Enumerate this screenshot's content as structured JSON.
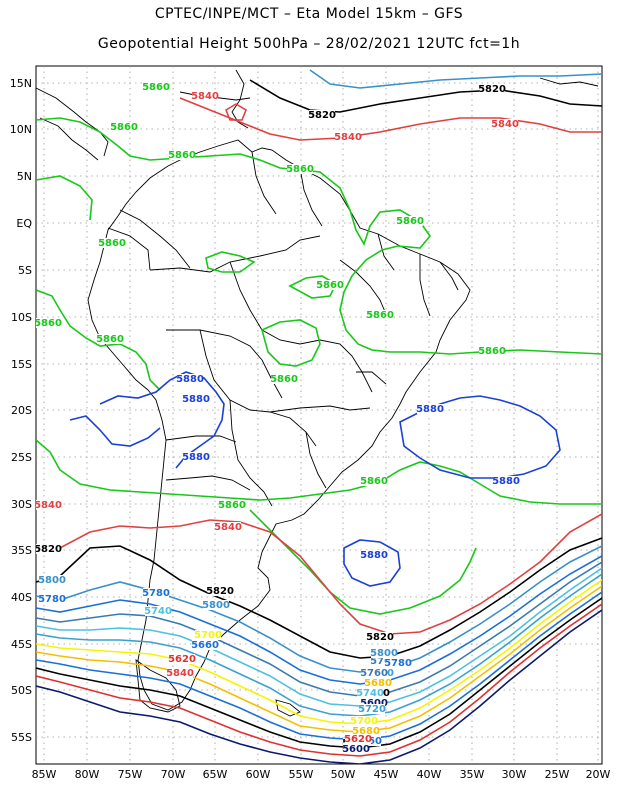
{
  "header": {
    "line1": "CPTEC/INPE/MCT –  Eta Model 15km – GFS",
    "line2": "Geopotential Height 500hPa – 28/02/2021 12UTC fct=1h"
  },
  "axes": {
    "lat_labels": [
      "15N",
      "10N",
      "5N",
      "EQ",
      "5S",
      "10S",
      "15S",
      "20S",
      "25S",
      "30S",
      "35S",
      "40S",
      "45S",
      "50S",
      "55S"
    ],
    "lon_labels": [
      "85W",
      "80W",
      "75W",
      "70W",
      "65W",
      "60W",
      "55W",
      "50W",
      "45W",
      "40W",
      "35W",
      "30W",
      "25W",
      "20W"
    ]
  },
  "contours": {
    "colors": {
      "c5600": "#0a1a6e",
      "c5620": "#e03030",
      "c5640": "#000000",
      "c5660": "#1a6fd8",
      "c5680": "#f2c000",
      "c5700": "#f5f500",
      "c5720": "#3aa0d0",
      "c5740": "#4ec0e0",
      "c5760": "#3a7ab0",
      "c5780": "#1a6fd8",
      "c5800": "#3a90c8",
      "c5820": "#000000",
      "c5840": "#e04040",
      "c5860": "#18c818",
      "c5880": "#1a40d8"
    },
    "labels": [
      {
        "text": "5820",
        "color": "#000000"
      },
      {
        "text": "5840",
        "color": "#e04040"
      },
      {
        "text": "5840",
        "color": "#e04040"
      },
      {
        "text": "5820",
        "color": "#000000"
      },
      {
        "text": "5860",
        "color": "#18c818"
      },
      {
        "text": "5840",
        "color": "#e04040"
      },
      {
        "text": "5860",
        "color": "#18c818"
      },
      {
        "text": "5860",
        "color": "#18c818"
      },
      {
        "text": "5860",
        "color": "#18c818"
      },
      {
        "text": "5860",
        "color": "#18c818"
      },
      {
        "text": "5860",
        "color": "#18c818"
      },
      {
        "text": "5860",
        "color": "#18c818"
      },
      {
        "text": "5860",
        "color": "#18c818"
      },
      {
        "text": "5860",
        "color": "#18c818"
      },
      {
        "text": "5860",
        "color": "#18c818"
      },
      {
        "text": "5860",
        "color": "#18c818"
      },
      {
        "text": "5860",
        "color": "#18c818"
      },
      {
        "text": "5880",
        "color": "#1a40d8"
      },
      {
        "text": "5880",
        "color": "#1a40d8"
      },
      {
        "text": "5880",
        "color": "#1a40d8"
      },
      {
        "text": "5880",
        "color": "#1a40d8"
      },
      {
        "text": "5880",
        "color": "#1a40d8"
      },
      {
        "text": "5880",
        "color": "#1a40d8"
      },
      {
        "text": "5860",
        "color": "#18c818"
      },
      {
        "text": "5860",
        "color": "#18c818"
      },
      {
        "text": "5840",
        "color": "#e04040"
      },
      {
        "text": "5840",
        "color": "#e04040"
      },
      {
        "text": "5820",
        "color": "#000000"
      },
      {
        "text": "5820",
        "color": "#000000"
      },
      {
        "text": "5800",
        "color": "#3a90c8"
      },
      {
        "text": "5800",
        "color": "#3a90c8"
      },
      {
        "text": "5780",
        "color": "#1a6fd8"
      },
      {
        "text": "5780",
        "color": "#1a6fd8"
      },
      {
        "text": "5760",
        "color": "#3a7ab0"
      },
      {
        "text": "5740",
        "color": "#4ec0e0"
      },
      {
        "text": "5720",
        "color": "#3aa0d0"
      },
      {
        "text": "5700",
        "color": "#f5f500"
      },
      {
        "text": "5680",
        "color": "#f2c000"
      },
      {
        "text": "5660",
        "color": "#1a6fd8"
      },
      {
        "text": "5640",
        "color": "#000000"
      },
      {
        "text": "5620",
        "color": "#e03030"
      },
      {
        "text": "5600",
        "color": "#0a1a6e"
      },
      {
        "text": "5840",
        "color": "#e04040"
      },
      {
        "text": "5820",
        "color": "#000000"
      },
      {
        "text": "5800",
        "color": "#3a90c8"
      },
      {
        "text": "5780",
        "color": "#1a6fd8"
      },
      {
        "text": "5760",
        "color": "#3a7ab0"
      },
      {
        "text": "5740",
        "color": "#4ec0e0"
      },
      {
        "text": "5720",
        "color": "#3aa0d0"
      },
      {
        "text": "5700",
        "color": "#f5f500"
      },
      {
        "text": "5680",
        "color": "#f2c000"
      },
      {
        "text": "5660",
        "color": "#1a6fd8"
      },
      {
        "text": "5640",
        "color": "#000000"
      },
      {
        "text": "5620",
        "color": "#e03030"
      },
      {
        "text": "5600",
        "color": "#0a1a6e"
      }
    ]
  }
}
